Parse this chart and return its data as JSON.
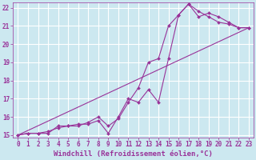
{
  "bg_color": "#cce8f0",
  "grid_color": "#ffffff",
  "line_color": "#993399",
  "marker_color": "#993399",
  "xlabel": "Windchill (Refroidissement éolien,°C)",
  "xlabel_color": "#993399",
  "xlabel_fontsize": 6.5,
  "tick_color": "#993399",
  "tick_fontsize": 5.5,
  "xlim": [
    -0.5,
    23.5
  ],
  "ylim": [
    14.85,
    22.3
  ],
  "xticks": [
    0,
    1,
    2,
    3,
    4,
    5,
    6,
    7,
    8,
    9,
    10,
    11,
    12,
    13,
    14,
    15,
    16,
    17,
    18,
    19,
    20,
    21,
    22,
    23
  ],
  "yticks": [
    15,
    16,
    17,
    18,
    19,
    20,
    21,
    22
  ],
  "line1_x": [
    0,
    1,
    2,
    3,
    4,
    5,
    6,
    7,
    8,
    9,
    10,
    11,
    12,
    13,
    14,
    15,
    16,
    17,
    18,
    19,
    20,
    21,
    22,
    23
  ],
  "line1_y": [
    15.0,
    15.1,
    15.1,
    15.2,
    15.4,
    15.5,
    15.6,
    15.6,
    15.8,
    15.1,
    16.0,
    17.0,
    16.8,
    17.5,
    16.8,
    19.2,
    21.6,
    22.2,
    21.8,
    21.5,
    21.2,
    21.1,
    20.9,
    20.9
  ],
  "line2_x": [
    0,
    1,
    2,
    3,
    4,
    5,
    6,
    7,
    8,
    9,
    10,
    11,
    12,
    13,
    14,
    15,
    16,
    17,
    18,
    19,
    20,
    21,
    22,
    23
  ],
  "line2_y": [
    15.0,
    15.1,
    15.1,
    15.1,
    15.5,
    15.5,
    15.5,
    15.7,
    16.0,
    15.5,
    15.9,
    16.8,
    17.6,
    19.0,
    19.2,
    21.0,
    21.6,
    22.2,
    21.5,
    21.7,
    21.5,
    21.2,
    20.9,
    20.9
  ],
  "line3_x": [
    0,
    23
  ],
  "line3_y": [
    15.0,
    20.9
  ]
}
